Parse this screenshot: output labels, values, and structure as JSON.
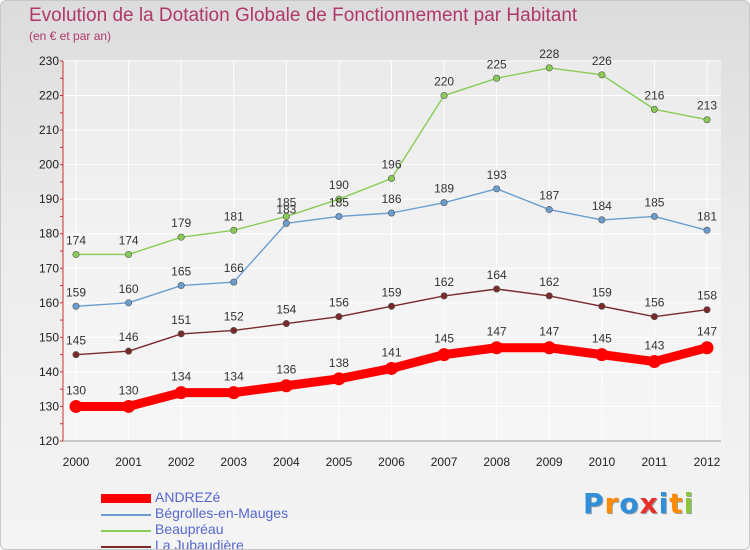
{
  "chart_data": {
    "type": "line",
    "title": "Evolution de la Dotation Globale de Fonctionnement par Habitant",
    "subtitle": "(en € et par an)",
    "categories": [
      "2000",
      "2001",
      "2002",
      "2003",
      "2004",
      "2005",
      "2006",
      "2007",
      "2008",
      "2009",
      "2010",
      "2011",
      "2012"
    ],
    "ylim": [
      120,
      230
    ],
    "yticks": [
      120,
      130,
      140,
      150,
      160,
      170,
      180,
      190,
      200,
      210,
      220,
      230
    ],
    "grid": true,
    "legend_position": "bottom-left",
    "series": [
      {
        "name": "ANDREZé",
        "color": "#ff0000",
        "values": [
          130,
          130,
          134,
          134,
          136,
          138,
          141,
          145,
          147,
          147,
          145,
          143,
          147
        ]
      },
      {
        "name": "Bégrolles-en-Mauges",
        "color": "#6a9ed0",
        "values": [
          159,
          160,
          165,
          166,
          183,
          185,
          186,
          189,
          193,
          187,
          184,
          185,
          181
        ]
      },
      {
        "name": "Beaupréau",
        "color": "#88cc55",
        "values": [
          174,
          174,
          179,
          181,
          185,
          190,
          196,
          220,
          225,
          228,
          226,
          216,
          213
        ]
      },
      {
        "name": "La Jubaudière",
        "color": "#7a2a2a",
        "values": [
          145,
          146,
          151,
          152,
          154,
          156,
          159,
          162,
          164,
          162,
          159,
          156,
          158
        ]
      }
    ]
  },
  "logo": {
    "letters": [
      "P",
      "r",
      "o",
      "x",
      "i",
      "t",
      "i"
    ],
    "colors": [
      "#2f8fd8",
      "#ff8c00",
      "#2f8fd8",
      "#e8302a",
      "#2f8fd8",
      "#ff8c00",
      "#8cc63f"
    ]
  }
}
